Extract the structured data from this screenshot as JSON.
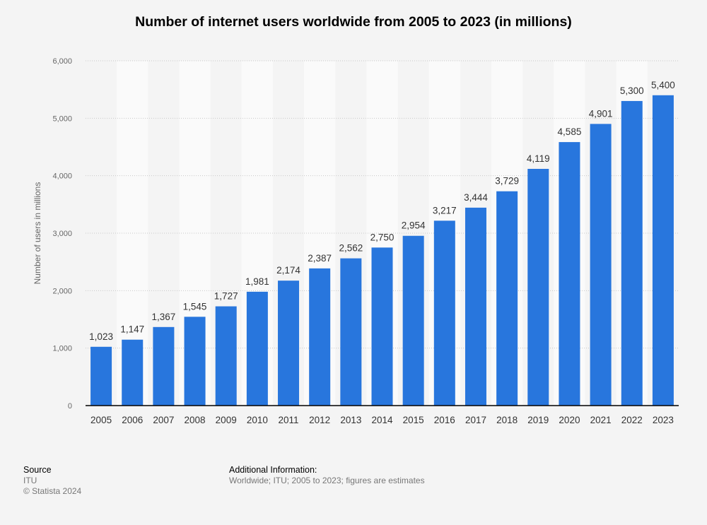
{
  "chart_data": {
    "type": "bar",
    "title": "Number of internet users worldwide from 2005 to 2023 (in millions)",
    "xlabel": "",
    "ylabel": "Number of users in millions",
    "categories": [
      "2005",
      "2006",
      "2007",
      "2008",
      "2009",
      "2010",
      "2011",
      "2012",
      "2013",
      "2014",
      "2015",
      "2016",
      "2017",
      "2018",
      "2019",
      "2020",
      "2021",
      "2022",
      "2023"
    ],
    "values": [
      1023,
      1147,
      1367,
      1545,
      1727,
      1981,
      2174,
      2387,
      2562,
      2750,
      2954,
      3217,
      3444,
      3729,
      4119,
      4585,
      4901,
      5300,
      5400
    ],
    "value_labels": [
      "1,023",
      "1,147",
      "1,367",
      "1,545",
      "1,727",
      "1,981",
      "2,174",
      "2,387",
      "2,562",
      "2,750",
      "2,954",
      "3,217",
      "3,444",
      "3,729",
      "4,119",
      "4,585",
      "4,901",
      "5,300",
      "5,400"
    ],
    "yticks": [
      0,
      1000,
      2000,
      3000,
      4000,
      5000,
      6000
    ],
    "ytick_labels": [
      "0",
      "1,000",
      "2,000",
      "3,000",
      "4,000",
      "5,000",
      "6,000"
    ],
    "ylim": [
      0,
      6000
    ],
    "grid": true,
    "legend": "none",
    "bar_color": "#2876dd"
  },
  "footer": {
    "source_heading": "Source",
    "source_name": "ITU",
    "copyright": "© Statista 2024",
    "additional_heading": "Additional Information:",
    "additional_text": "Worldwide; ITU; 2005 to 2023; figures are estimates"
  }
}
